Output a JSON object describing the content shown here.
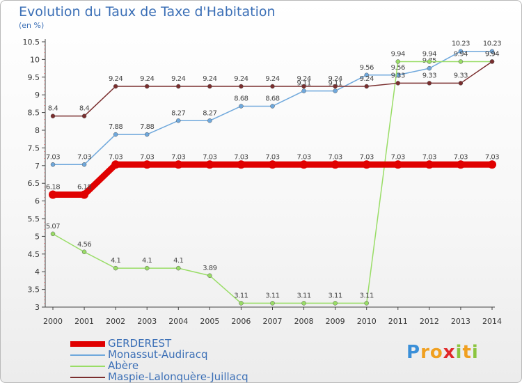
{
  "title": "Evolution du Taux de Taxe d'Habitation",
  "subtitle": "(en %)",
  "logo": {
    "letters": [
      "P",
      "r",
      "o",
      "x",
      "i",
      "t",
      "i"
    ],
    "colors": [
      "#3a8fd8",
      "#f0a020",
      "#f0a020",
      "#e0282a",
      "#8bc53f",
      "#f0a020",
      "#8bc53f"
    ]
  },
  "chart_data": {
    "type": "line",
    "x": [
      2000,
      2001,
      2002,
      2003,
      2004,
      2005,
      2006,
      2007,
      2008,
      2009,
      2010,
      2011,
      2012,
      2013,
      2014
    ],
    "ylim": [
      3,
      10.5
    ],
    "yticks": [
      "3",
      "3.5",
      "4",
      "4.5",
      "5",
      "5.5",
      "6",
      "6.5",
      "7",
      "7.5",
      "8",
      "8.5",
      "9",
      "9.5",
      "10",
      "10.5"
    ],
    "grid": false,
    "legend_position": "bottom-left",
    "series": [
      {
        "name": "GERDEREST",
        "color": "#e00000",
        "width": 9,
        "values": [
          6.18,
          6.18,
          7.03,
          7.03,
          7.03,
          7.03,
          7.03,
          7.03,
          7.03,
          7.03,
          7.03,
          7.03,
          7.03,
          7.03,
          7.03
        ],
        "labels": [
          "6.18",
          "6.18",
          "7.03",
          "7.03",
          "7.03",
          "7.03",
          "7.03",
          "7.03",
          "7.03",
          "7.03",
          "7.03",
          "7.03",
          "7.03",
          "7.03",
          "7.03"
        ]
      },
      {
        "name": "Monassut-Audiracq",
        "color": "#6fa8dc",
        "width": 1.5,
        "values": [
          7.03,
          7.03,
          7.88,
          7.88,
          8.27,
          8.27,
          8.68,
          8.68,
          9.11,
          9.11,
          9.56,
          9.56,
          9.75,
          10.23,
          10.23
        ],
        "labels": [
          "7.03",
          "7.03",
          "7.88",
          "7.88",
          "8.27",
          "8.27",
          "8.68",
          "8.68",
          "9.11",
          "9.11",
          "9.56",
          "9.56",
          "9.75",
          "10.23",
          "10.23"
        ]
      },
      {
        "name": "Abère",
        "color": "#99dd66",
        "width": 1.5,
        "values": [
          5.07,
          4.56,
          4.1,
          4.1,
          4.1,
          3.89,
          3.11,
          3.11,
          3.11,
          3.11,
          3.11,
          9.94,
          9.94,
          9.94,
          9.94
        ],
        "labels": [
          "5.07",
          "4.56",
          "4.1",
          "4.1",
          "4.1",
          "3.89",
          "3.11",
          "3.11",
          "3.11",
          "3.11",
          "3.11",
          "9.94",
          "9.94",
          "9.94",
          "9.94"
        ]
      },
      {
        "name": "Maspie-Lalonquère-Juillacq",
        "color": "#7a2e2e",
        "width": 1.5,
        "values": [
          8.4,
          8.4,
          9.24,
          9.24,
          9.24,
          9.24,
          9.24,
          9.24,
          9.24,
          9.24,
          9.24,
          9.33,
          9.33,
          9.33,
          9.94
        ],
        "labels": [
          "8.4",
          "8.4",
          "9.24",
          "9.24",
          "9.24",
          "9.24",
          "9.24",
          "9.24",
          "9.24",
          "9.24",
          "9.24",
          "9.33",
          "9.33",
          "9.33",
          "9.94"
        ]
      }
    ]
  }
}
